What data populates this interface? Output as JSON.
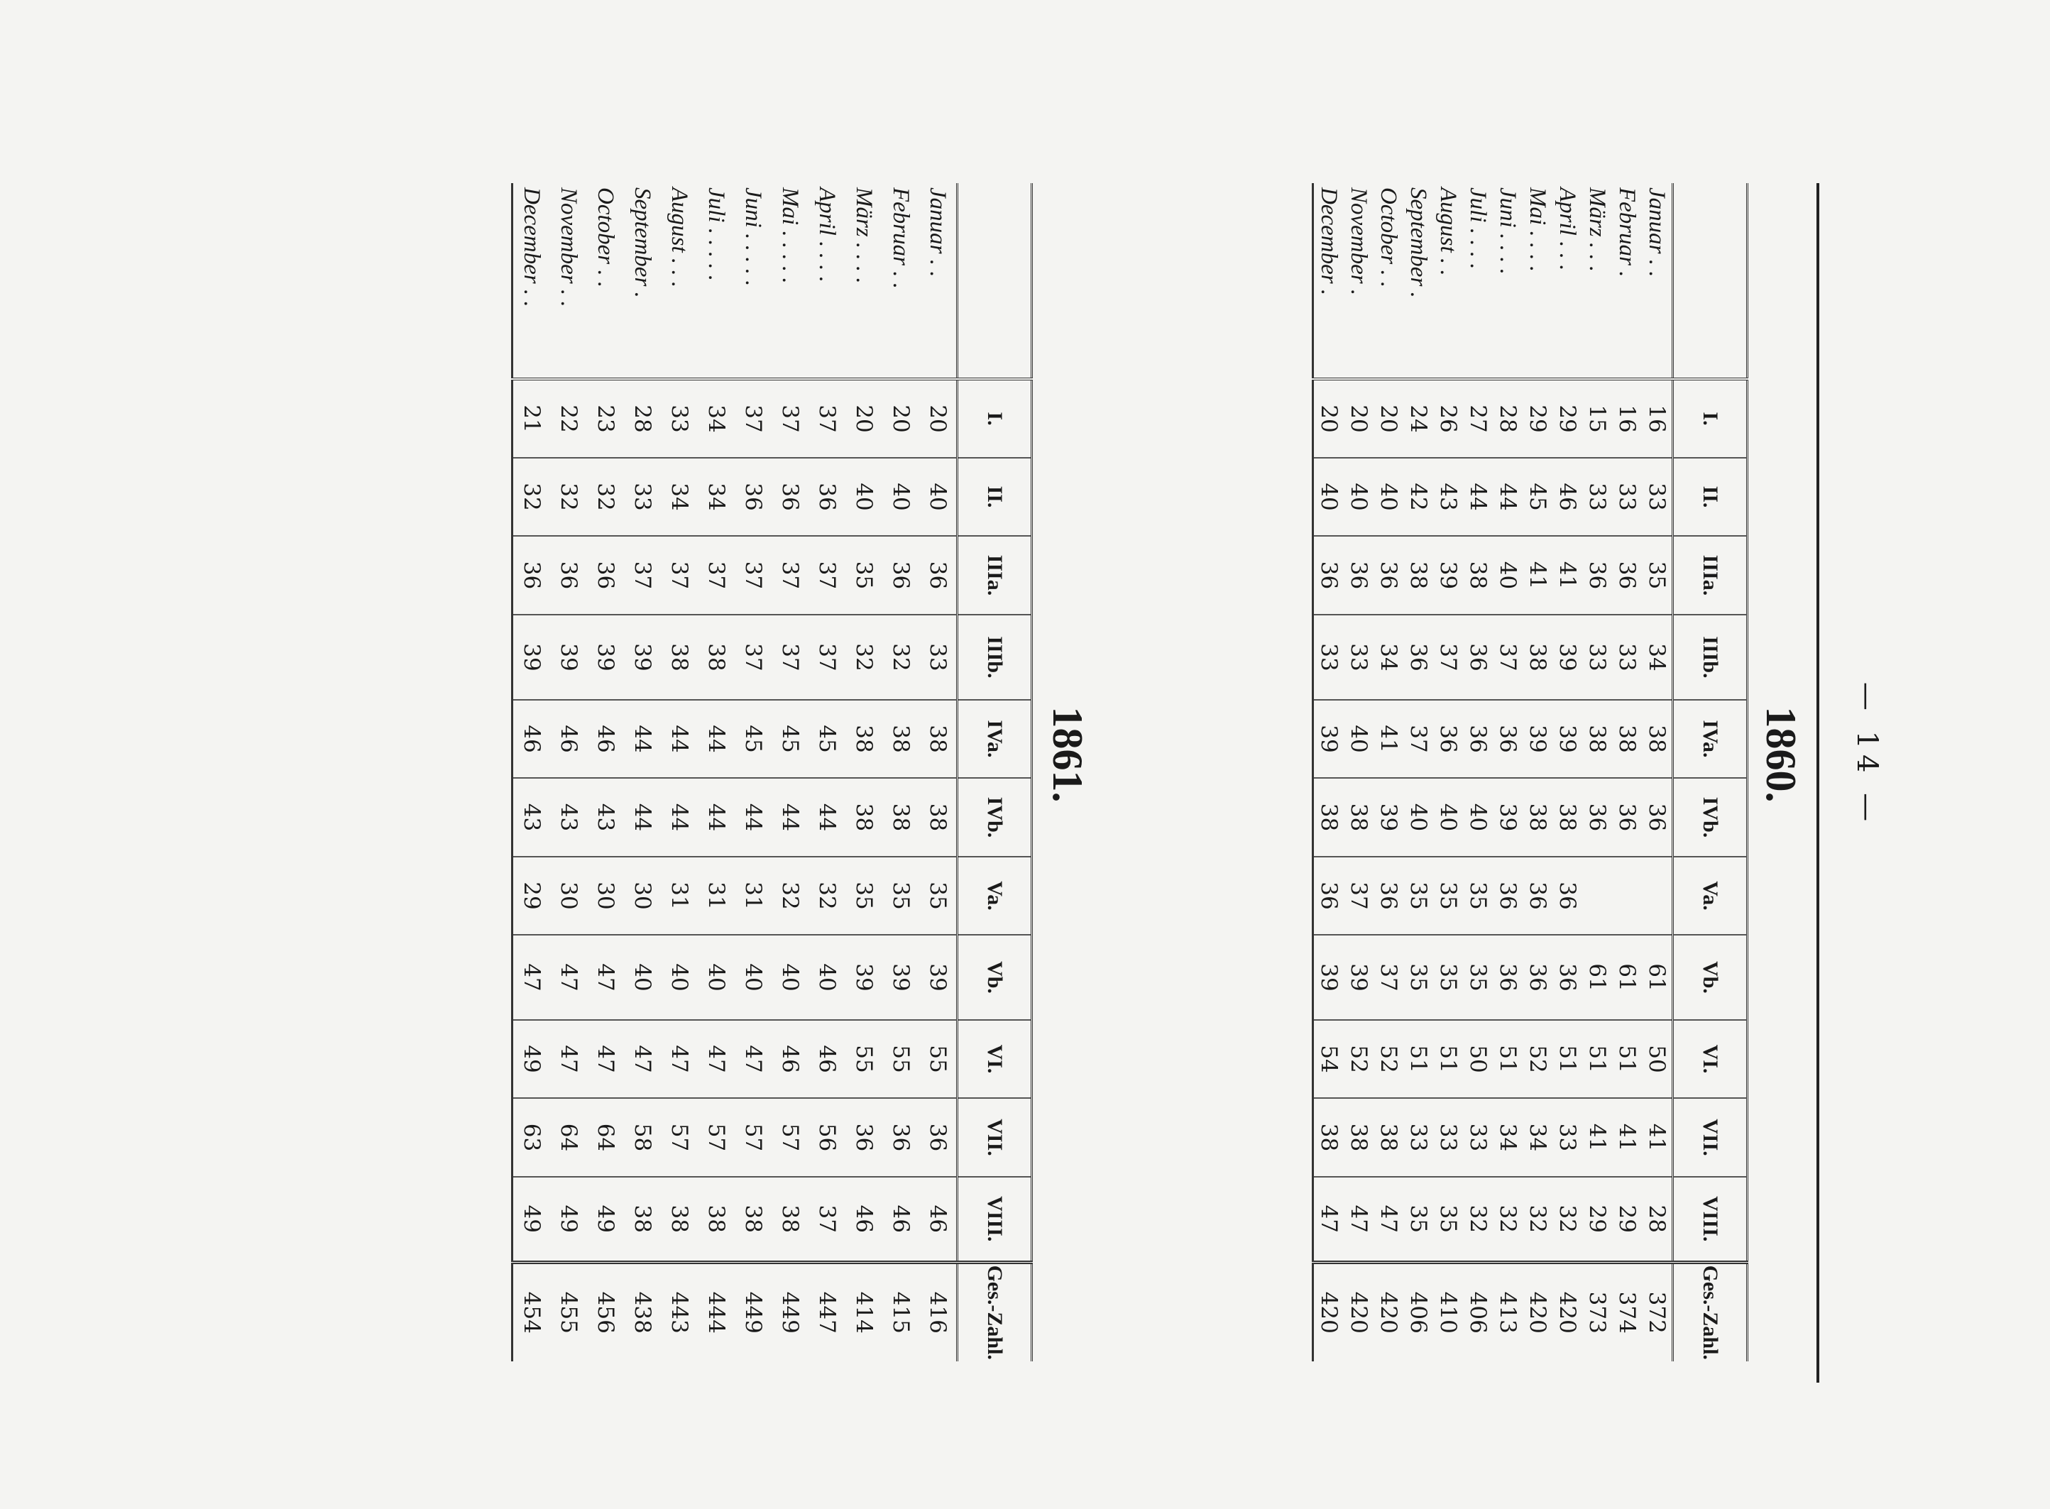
{
  "page_number": "— 14 —",
  "columns": [
    "",
    "I.",
    "II.",
    "IIIa.",
    "IIIb.",
    "IVa.",
    "IVb.",
    "Va.",
    "Vb.",
    "VI.",
    "VII.",
    "VIII.",
    "Ges.-Zahl."
  ],
  "tables": [
    {
      "year": "1860.",
      "rows": [
        {
          "month": "Januar . .",
          "values": [
            "16",
            "33",
            "35",
            "34",
            "38",
            "36",
            "",
            "61",
            "50",
            "41",
            "28",
            "372"
          ]
        },
        {
          "month": "Februar .",
          "values": [
            "16",
            "33",
            "36",
            "33",
            "38",
            "36",
            "",
            "61",
            "51",
            "41",
            "29",
            "374"
          ]
        },
        {
          "month": "März . . .",
          "values": [
            "15",
            "33",
            "36",
            "33",
            "38",
            "36",
            "",
            "61",
            "51",
            "41",
            "29",
            "373"
          ]
        },
        {
          "month": "April . . .",
          "values": [
            "29",
            "46",
            "41",
            "39",
            "39",
            "38",
            "36",
            "36",
            "51",
            "33",
            "32",
            "420"
          ]
        },
        {
          "month": "Mai . . . .",
          "values": [
            "29",
            "45",
            "41",
            "38",
            "39",
            "38",
            "36",
            "36",
            "52",
            "34",
            "32",
            "420"
          ]
        },
        {
          "month": "Juni . . . .",
          "values": [
            "28",
            "44",
            "40",
            "37",
            "36",
            "39",
            "36",
            "36",
            "51",
            "34",
            "32",
            "413"
          ]
        },
        {
          "month": "Juli . . . .",
          "values": [
            "27",
            "44",
            "38",
            "36",
            "36",
            "40",
            "35",
            "35",
            "50",
            "33",
            "32",
            "406"
          ]
        },
        {
          "month": "August . .",
          "values": [
            "26",
            "43",
            "39",
            "37",
            "36",
            "40",
            "35",
            "35",
            "51",
            "33",
            "35",
            "410"
          ]
        },
        {
          "month": "September .",
          "values": [
            "24",
            "42",
            "38",
            "36",
            "37",
            "40",
            "35",
            "35",
            "51",
            "33",
            "35",
            "406"
          ]
        },
        {
          "month": "October . .",
          "values": [
            "20",
            "40",
            "36",
            "34",
            "41",
            "39",
            "36",
            "37",
            "52",
            "38",
            "47",
            "420"
          ]
        },
        {
          "month": "November .",
          "values": [
            "20",
            "40",
            "36",
            "33",
            "40",
            "38",
            "37",
            "39",
            "52",
            "38",
            "47",
            "420"
          ]
        },
        {
          "month": "December .",
          "values": [
            "20",
            "40",
            "36",
            "33",
            "39",
            "38",
            "36",
            "39",
            "54",
            "38",
            "47",
            "420"
          ]
        }
      ]
    },
    {
      "year": "1861.",
      "rows": [
        {
          "month": "Januar . .",
          "values": [
            "20",
            "40",
            "36",
            "33",
            "38",
            "38",
            "35",
            "39",
            "55",
            "36",
            "46",
            "416"
          ]
        },
        {
          "month": "Februar . .",
          "values": [
            "20",
            "40",
            "36",
            "32",
            "38",
            "38",
            "35",
            "39",
            "55",
            "36",
            "46",
            "415"
          ]
        },
        {
          "month": "März . . . .",
          "values": [
            "20",
            "40",
            "35",
            "32",
            "38",
            "38",
            "35",
            "39",
            "55",
            "36",
            "46",
            "414"
          ]
        },
        {
          "month": "April . . . .",
          "values": [
            "37",
            "36",
            "37",
            "37",
            "45",
            "44",
            "32",
            "40",
            "46",
            "56",
            "37",
            "447"
          ]
        },
        {
          "month": "Mai . . . . .",
          "values": [
            "37",
            "36",
            "37",
            "37",
            "45",
            "44",
            "32",
            "40",
            "46",
            "57",
            "38",
            "449"
          ]
        },
        {
          "month": "Juni . . . . .",
          "values": [
            "37",
            "36",
            "37",
            "37",
            "45",
            "44",
            "31",
            "40",
            "47",
            "57",
            "38",
            "449"
          ]
        },
        {
          "month": "Juli . . . . .",
          "values": [
            "34",
            "34",
            "37",
            "38",
            "44",
            "44",
            "31",
            "40",
            "47",
            "57",
            "38",
            "444"
          ]
        },
        {
          "month": "August . . .",
          "values": [
            "33",
            "34",
            "37",
            "38",
            "44",
            "44",
            "31",
            "40",
            "47",
            "57",
            "38",
            "443"
          ]
        },
        {
          "month": "September .",
          "values": [
            "28",
            "33",
            "37",
            "39",
            "44",
            "44",
            "30",
            "40",
            "47",
            "58",
            "38",
            "438"
          ]
        },
        {
          "month": "October . .",
          "values": [
            "23",
            "32",
            "36",
            "39",
            "46",
            "43",
            "30",
            "47",
            "47",
            "64",
            "49",
            "456"
          ]
        },
        {
          "month": "November . .",
          "values": [
            "22",
            "32",
            "36",
            "39",
            "46",
            "43",
            "30",
            "47",
            "47",
            "64",
            "49",
            "455"
          ]
        },
        {
          "month": "December . .",
          "values": [
            "21",
            "32",
            "36",
            "39",
            "46",
            "43",
            "29",
            "47",
            "49",
            "63",
            "49",
            "454"
          ]
        }
      ]
    }
  ]
}
